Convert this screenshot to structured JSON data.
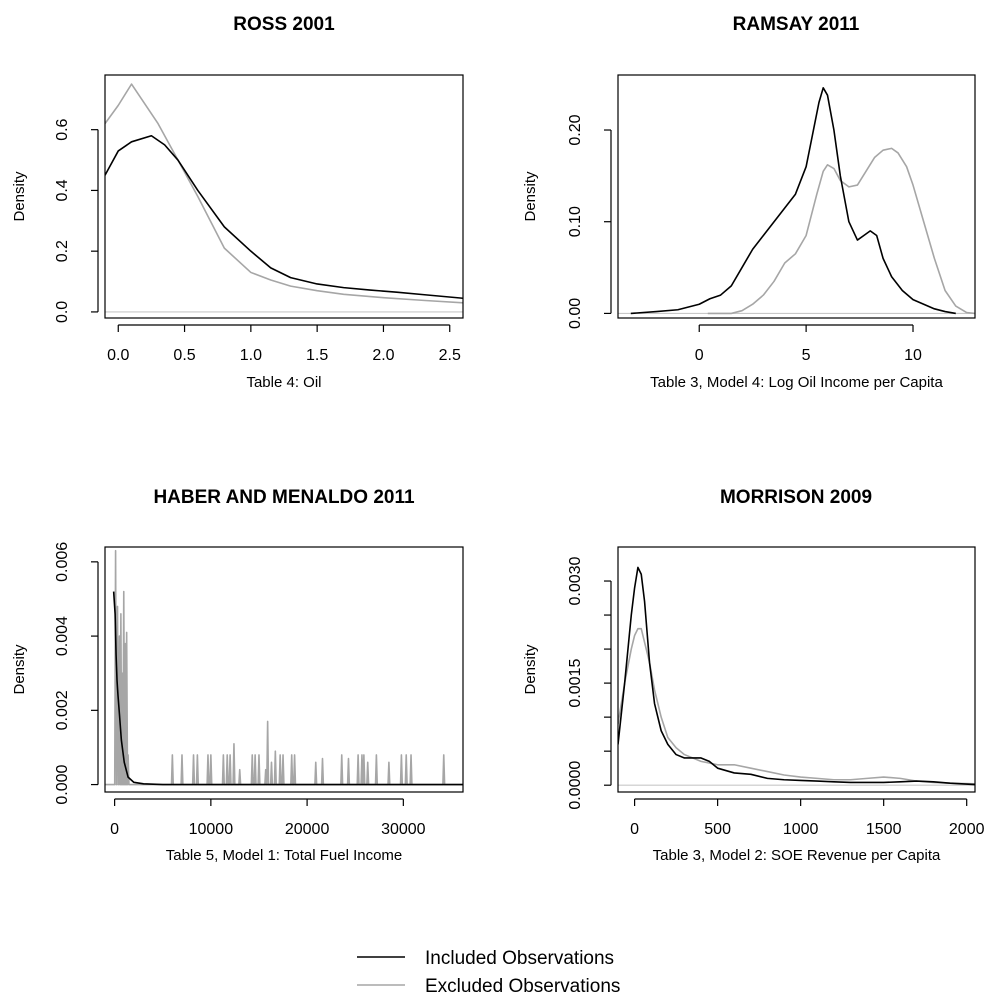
{
  "colors": {
    "included": "#000000",
    "excluded": "#a6a6a6",
    "zero_line": "#c8c8c8"
  },
  "legend": {
    "items": [
      {
        "label": "Included Observations",
        "color": "#000000"
      },
      {
        "label": "Excluded Observations",
        "color": "#a6a6a6"
      }
    ]
  },
  "chart_data": [
    {
      "type": "line",
      "title": "ROSS 2001",
      "xlabel": "Table 4: Oil",
      "ylabel": "Density",
      "xlim": [
        -0.1,
        2.6
      ],
      "ylim": [
        -0.02,
        0.78
      ],
      "xticks": [
        0.0,
        0.5,
        1.0,
        1.5,
        2.0,
        2.5
      ],
      "xtick_labels": [
        "0.0",
        "0.5",
        "1.0",
        "1.5",
        "2.0",
        "2.5"
      ],
      "yticks": [
        0.0,
        0.2,
        0.4,
        0.6
      ],
      "ytick_labels": [
        "0.0",
        "0.2",
        "0.4",
        "0.6"
      ],
      "series": [
        {
          "name": "Included Observations",
          "x": [
            -0.1,
            0.0,
            0.1,
            0.25,
            0.35,
            0.45,
            0.6,
            0.8,
            1.0,
            1.15,
            1.3,
            1.5,
            1.7,
            1.9,
            2.1,
            2.3,
            2.6
          ],
          "y": [
            0.45,
            0.53,
            0.56,
            0.58,
            0.55,
            0.5,
            0.4,
            0.28,
            0.2,
            0.145,
            0.113,
            0.092,
            0.08,
            0.072,
            0.065,
            0.057,
            0.045
          ]
        },
        {
          "name": "Excluded Observations",
          "x": [
            -0.1,
            0.0,
            0.1,
            0.3,
            0.45,
            0.6,
            0.8,
            1.0,
            1.15,
            1.3,
            1.5,
            1.7,
            2.0,
            2.3,
            2.6
          ],
          "y": [
            0.62,
            0.68,
            0.75,
            0.62,
            0.5,
            0.38,
            0.21,
            0.13,
            0.105,
            0.085,
            0.07,
            0.058,
            0.047,
            0.038,
            0.03
          ]
        }
      ]
    },
    {
      "type": "line",
      "title": "RAMSAY 2011",
      "xlabel": "Table 3, Model 4: Log Oil Income per Capita",
      "ylabel": "Density",
      "xlim": [
        -3.8,
        12.9
      ],
      "ylim": [
        -0.005,
        0.26
      ],
      "xticks": [
        0,
        5,
        10
      ],
      "xtick_labels": [
        "0",
        "5",
        "10"
      ],
      "yticks": [
        0.0,
        0.1,
        0.2
      ],
      "ytick_labels": [
        "0.00",
        "0.10",
        "0.20"
      ],
      "series": [
        {
          "name": "Included Observations",
          "x": [
            -3.2,
            -2.0,
            -1.0,
            0.0,
            0.5,
            1.0,
            1.5,
            2.0,
            2.5,
            3.0,
            3.5,
            4.0,
            4.5,
            5.0,
            5.3,
            5.6,
            5.8,
            6.0,
            6.3,
            6.6,
            7.0,
            7.4,
            7.7,
            8.0,
            8.3,
            8.6,
            9.0,
            9.5,
            10.0,
            10.5,
            11.0,
            11.5,
            12.0
          ],
          "y": [
            0.0,
            0.002,
            0.004,
            0.01,
            0.016,
            0.02,
            0.03,
            0.05,
            0.07,
            0.085,
            0.1,
            0.115,
            0.13,
            0.16,
            0.195,
            0.23,
            0.246,
            0.238,
            0.2,
            0.15,
            0.1,
            0.08,
            0.085,
            0.09,
            0.085,
            0.06,
            0.04,
            0.025,
            0.015,
            0.01,
            0.005,
            0.002,
            0.0
          ]
        },
        {
          "name": "Excluded Observations",
          "x": [
            0.4,
            1.5,
            2.0,
            2.5,
            3.0,
            3.5,
            4.0,
            4.5,
            5.0,
            5.5,
            5.8,
            6.0,
            6.3,
            6.6,
            7.0,
            7.4,
            7.8,
            8.2,
            8.6,
            9.0,
            9.3,
            9.7,
            10.0,
            10.5,
            11.0,
            11.5,
            12.0,
            12.5,
            12.9
          ],
          "y": [
            0.0,
            0.0,
            0.003,
            0.01,
            0.02,
            0.035,
            0.055,
            0.065,
            0.085,
            0.13,
            0.155,
            0.162,
            0.158,
            0.145,
            0.138,
            0.14,
            0.155,
            0.17,
            0.178,
            0.18,
            0.175,
            0.16,
            0.14,
            0.1,
            0.06,
            0.025,
            0.008,
            0.001,
            0.0
          ]
        }
      ]
    },
    {
      "type": "line",
      "title": "HABER AND MENALDO 2011",
      "xlabel": "Table 5, Model 1: Total Fuel Income",
      "ylabel": "Density",
      "xlim": [
        -1000,
        36200
      ],
      "ylim": [
        -0.0002,
        0.0064
      ],
      "xticks": [
        0,
        10000,
        20000,
        30000
      ],
      "xtick_labels": [
        "0",
        "10000",
        "20000",
        "30000"
      ],
      "yticks": [
        0.0,
        0.002,
        0.004,
        0.006
      ],
      "ytick_labels": [
        "0.000",
        "0.002",
        "0.004",
        "0.006"
      ],
      "spike_width": 90,
      "series": [
        {
          "name": "Included Observations",
          "x": [
            -100,
            50,
            150,
            250,
            350,
            500,
            700,
            1000,
            1400,
            2000,
            3000,
            5000,
            36200
          ],
          "y": [
            0.0052,
            0.0046,
            0.0035,
            0.0028,
            0.0024,
            0.0019,
            0.0012,
            0.0006,
            0.0002,
            6e-05,
            2e-05,
            0.0,
            0.0
          ]
        },
        {
          "name": "Excluded Observations",
          "x": [
            100,
            300,
            500,
            650,
            800,
            950,
            1100,
            1250,
            1400,
            6000,
            7000,
            8200,
            8600,
            9700,
            10000,
            11300,
            11700,
            12000,
            12400,
            13000,
            14300,
            14600,
            15000,
            15700,
            15900,
            16300,
            16700,
            17200,
            17500,
            18400,
            18700,
            20900,
            21600,
            23600,
            24300,
            25300,
            25700,
            25900,
            26300,
            27200,
            28500,
            29800,
            30300,
            30800,
            34200
          ],
          "y": [
            0.0063,
            0.0048,
            0.004,
            0.0046,
            0.003,
            0.0052,
            0.0038,
            0.0041,
            0.0008,
            0.0008,
            0.0008,
            0.0008,
            0.0008,
            0.0008,
            0.0008,
            0.0008,
            0.0008,
            0.0008,
            0.0011,
            0.0004,
            0.0008,
            0.0008,
            0.0008,
            0.0004,
            0.0017,
            0.0006,
            0.0009,
            0.0008,
            0.0008,
            0.0008,
            0.0008,
            0.0006,
            0.0007,
            0.0008,
            0.0007,
            0.0008,
            0.0008,
            0.0008,
            0.0006,
            0.0008,
            0.0006,
            0.0008,
            0.0008,
            0.0008,
            0.0008
          ]
        }
      ]
    },
    {
      "type": "line",
      "title": "MORRISON 2009",
      "xlabel": "Table 3, Model 2: SOE Revenue per Capita",
      "ylabel": "Density",
      "xlim": [
        -100,
        2050
      ],
      "ylim": [
        -0.0001,
        0.0035
      ],
      "xticks": [
        0,
        500,
        1000,
        1500,
        2000
      ],
      "xtick_labels": [
        "0",
        "500",
        "1000",
        "1500",
        "2000"
      ],
      "yticks": [
        0.0,
        0.0005,
        0.001,
        0.0015,
        0.002,
        0.0025,
        0.003
      ],
      "ytick_labels": [
        "0.0000",
        "",
        "",
        "0.0015",
        "",
        "",
        "0.0030"
      ],
      "series": [
        {
          "name": "Included Observations",
          "x": [
            -100,
            -60,
            -20,
            0,
            20,
            40,
            60,
            90,
            120,
            160,
            200,
            250,
            300,
            350,
            400,
            450,
            500,
            600,
            700,
            800,
            900,
            1000,
            1100,
            1200,
            1300,
            1400,
            1500,
            1600,
            1700,
            1800,
            1900,
            2050
          ],
          "y": [
            0.0006,
            0.0015,
            0.0025,
            0.0029,
            0.0032,
            0.0031,
            0.0027,
            0.0018,
            0.0012,
            0.0008,
            0.0006,
            0.00045,
            0.0004,
            0.0004,
            0.0004,
            0.00035,
            0.00025,
            0.00018,
            0.00016,
            0.0001,
            8e-05,
            7e-05,
            6e-05,
            5e-05,
            4e-05,
            4e-05,
            4e-05,
            5e-05,
            6e-05,
            5e-05,
            3e-05,
            1e-05
          ]
        },
        {
          "name": "Excluded Observations",
          "x": [
            -100,
            -60,
            -20,
            0,
            20,
            40,
            60,
            90,
            120,
            160,
            200,
            250,
            300,
            400,
            500,
            600,
            700,
            800,
            900,
            1000,
            1100,
            1200,
            1300,
            1400,
            1500,
            1600,
            1700,
            1800,
            1900,
            2050
          ],
          "y": [
            0.0009,
            0.0015,
            0.002,
            0.0022,
            0.0023,
            0.0023,
            0.0021,
            0.0018,
            0.0014,
            0.001,
            0.0007,
            0.00055,
            0.00045,
            0.00035,
            0.0003,
            0.0003,
            0.00025,
            0.0002,
            0.00015,
            0.00012,
            0.0001,
            8e-05,
            8e-05,
            0.0001,
            0.00012,
            0.0001,
            6e-05,
            4e-05,
            3e-05,
            2e-05
          ]
        }
      ]
    }
  ]
}
